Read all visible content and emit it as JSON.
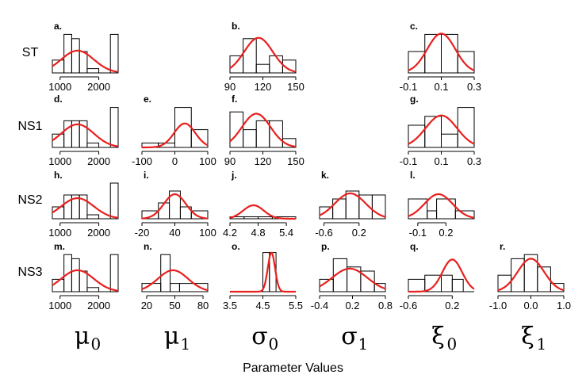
{
  "xlabel": "Parameter Values",
  "row_labels": [
    "ST",
    "NS1",
    "NS2",
    "NS3"
  ],
  "column_labels": [
    {
      "symbol": "μ",
      "sub": "0"
    },
    {
      "symbol": "μ",
      "sub": "1"
    },
    {
      "symbol": "σ",
      "sub": "0"
    },
    {
      "symbol": "σ",
      "sub": "1"
    },
    {
      "symbol": "ξ",
      "sub": "0"
    },
    {
      "symbol": "ξ",
      "sub": "1"
    }
  ],
  "colors": {
    "curve": "#e8201e",
    "bars": "#000000"
  },
  "chart_data": [
    {
      "label": "a.",
      "row": 0,
      "col": 0,
      "type": "bar",
      "xlim": [
        800,
        2500
      ],
      "bins": [
        [
          800,
          1100
        ],
        [
          1100,
          1300
        ],
        [
          1300,
          1500
        ],
        [
          1500,
          1700
        ],
        [
          1700,
          2000
        ],
        [
          2000,
          2300
        ],
        [
          2300,
          2500
        ]
      ],
      "counts": [
        3,
        9,
        8,
        5,
        1,
        0,
        9
      ],
      "normal": {
        "mean": 1450,
        "sd": 420,
        "peak": 5.2
      },
      "ticks": [
        1000,
        2000
      ],
      "tick_labels": [
        "1000",
        "2000"
      ]
    },
    {
      "label": "b.",
      "row": 0,
      "col": 2,
      "type": "bar",
      "xlim": [
        90,
        150
      ],
      "bins": [
        [
          90,
          102
        ],
        [
          102,
          114
        ],
        [
          114,
          126
        ],
        [
          126,
          138
        ],
        [
          138,
          150
        ]
      ],
      "counts": [
        4,
        8,
        2,
        4,
        3
      ],
      "normal": {
        "mean": 116,
        "sd": 13,
        "peak": 8.2
      },
      "ticks": [
        90,
        120,
        150
      ],
      "tick_labels": [
        "90",
        "120",
        "150"
      ]
    },
    {
      "label": "c.",
      "row": 0,
      "col": 4,
      "type": "bar",
      "xlim": [
        -0.1,
        0.3
      ],
      "bins": [
        [
          -0.1,
          0.0
        ],
        [
          0.0,
          0.1
        ],
        [
          0.1,
          0.2
        ],
        [
          0.2,
          0.3
        ]
      ],
      "counts": [
        5,
        9,
        9,
        5
      ],
      "normal": {
        "mean": 0.1,
        "sd": 0.085,
        "peak": 9.2
      },
      "ticks": [
        -0.1,
        0.1,
        0.3
      ],
      "tick_labels": [
        "-0.1",
        "0.1",
        "0.3"
      ]
    },
    {
      "label": "d.",
      "row": 1,
      "col": 0,
      "type": "bar",
      "xlim": [
        800,
        2500
      ],
      "bins": [
        [
          800,
          1100
        ],
        [
          1100,
          1300
        ],
        [
          1300,
          1500
        ],
        [
          1500,
          1700
        ],
        [
          1700,
          2000
        ],
        [
          2000,
          2300
        ],
        [
          2300,
          2500
        ]
      ],
      "counts": [
        3,
        6,
        6,
        6,
        1,
        0,
        9
      ],
      "normal": {
        "mean": 1450,
        "sd": 420,
        "peak": 5.2
      },
      "ticks": [
        1000,
        2000
      ],
      "tick_labels": [
        "1000",
        "2000"
      ]
    },
    {
      "label": "e.",
      "row": 1,
      "col": 1,
      "type": "bar",
      "xlim": [
        -100,
        100
      ],
      "bins": [
        [
          -100,
          -50
        ],
        [
          -50,
          0
        ],
        [
          0,
          50
        ],
        [
          50,
          100
        ]
      ],
      "counts": [
        1,
        1,
        9,
        4
      ],
      "normal": {
        "mean": 30,
        "sd": 32,
        "peak": 5.4
      },
      "ticks": [
        -100,
        0,
        100
      ],
      "tick_labels": [
        "-100",
        "0",
        "100"
      ]
    },
    {
      "label": "f.",
      "row": 1,
      "col": 2,
      "type": "bar",
      "xlim": [
        90,
        150
      ],
      "bins": [
        [
          90,
          102
        ],
        [
          102,
          114
        ],
        [
          114,
          126
        ],
        [
          126,
          138
        ],
        [
          138,
          150
        ]
      ],
      "counts": [
        8,
        4,
        6,
        6,
        2
      ],
      "normal": {
        "mean": 114,
        "sd": 13,
        "peak": 7.6
      },
      "ticks": [
        90,
        120,
        150
      ],
      "tick_labels": [
        "90",
        "120",
        "150"
      ]
    },
    {
      "label": "g.",
      "row": 1,
      "col": 4,
      "type": "bar",
      "xlim": [
        -0.1,
        0.3
      ],
      "bins": [
        [
          -0.1,
          0.0
        ],
        [
          0.0,
          0.1
        ],
        [
          0.1,
          0.2
        ],
        [
          0.2,
          0.3
        ]
      ],
      "counts": [
        5,
        7,
        3,
        9
      ],
      "normal": {
        "mean": 0.1,
        "sd": 0.095,
        "peak": 7.2
      },
      "ticks": [
        -0.1,
        0.1,
        0.3
      ],
      "tick_labels": [
        "-0.1",
        "0.1",
        "0.3"
      ]
    },
    {
      "label": "h.",
      "row": 2,
      "col": 0,
      "type": "bar",
      "xlim": [
        800,
        2500
      ],
      "bins": [
        [
          800,
          1100
        ],
        [
          1100,
          1300
        ],
        [
          1300,
          1500
        ],
        [
          1500,
          1700
        ],
        [
          1700,
          2000
        ],
        [
          2000,
          2300
        ],
        [
          2300,
          2500
        ]
      ],
      "counts": [
        3,
        6,
        6,
        6,
        1,
        0,
        9
      ],
      "normal": {
        "mean": 1450,
        "sd": 420,
        "peak": 5.2
      },
      "ticks": [
        1000,
        2000
      ],
      "tick_labels": [
        "1000",
        "2000"
      ]
    },
    {
      "label": "i.",
      "row": 2,
      "col": 1,
      "type": "bar",
      "xlim": [
        -20,
        100
      ],
      "bins": [
        [
          -20,
          10
        ],
        [
          10,
          30
        ],
        [
          30,
          50
        ],
        [
          50,
          70
        ],
        [
          70,
          100
        ]
      ],
      "counts": [
        2,
        4,
        7,
        3,
        2
      ],
      "normal": {
        "mean": 40,
        "sd": 20,
        "peak": 6.2
      },
      "ticks": [
        -20,
        40,
        100
      ],
      "tick_labels": [
        "-20",
        "40",
        "100"
      ]
    },
    {
      "label": "j.",
      "row": 2,
      "col": 2,
      "type": "bar",
      "xlim": [
        4.2,
        5.6
      ],
      "bins": [
        [
          4.2,
          4.5
        ],
        [
          4.5,
          4.8
        ],
        [
          4.8,
          5.1
        ],
        [
          5.1,
          5.6
        ]
      ],
      "counts": [
        0.5,
        0.5,
        0.5,
        0.5
      ],
      "normal": {
        "mean": 4.7,
        "sd": 0.22,
        "peak": 3.4
      },
      "ticks": [
        4.2,
        4.8,
        5.4
      ],
      "tick_labels": [
        "4.2",
        "4.8",
        "5.4"
      ]
    },
    {
      "label": "k.",
      "row": 2,
      "col": 3,
      "type": "bar",
      "xlim": [
        -0.7,
        0.8
      ],
      "bins": [
        [
          -0.7,
          -0.4
        ],
        [
          -0.4,
          -0.1
        ],
        [
          -0.1,
          0.2
        ],
        [
          0.2,
          0.5
        ],
        [
          0.5,
          0.8
        ]
      ],
      "counts": [
        3,
        5,
        7,
        6,
        6
      ],
      "normal": {
        "mean": 0.0,
        "sd": 0.35,
        "peak": 6.4
      },
      "ticks": [
        -0.6,
        0.2
      ],
      "tick_labels": [
        "-0.6",
        "0.2"
      ]
    },
    {
      "label": "l.",
      "row": 2,
      "col": 4,
      "type": "bar",
      "xlim": [
        -0.2,
        0.5
      ],
      "bins": [
        [
          -0.2,
          0.0
        ],
        [
          0.0,
          0.1
        ],
        [
          0.1,
          0.3
        ],
        [
          0.3,
          0.5
        ]
      ],
      "counts": [
        5,
        2,
        5,
        2
      ],
      "normal": {
        "mean": 0.12,
        "sd": 0.15,
        "peak": 6.2
      },
      "ticks": [
        -0.1,
        0.2
      ],
      "tick_labels": [
        "-0.1",
        "0.2"
      ]
    },
    {
      "label": "m.",
      "row": 3,
      "col": 0,
      "type": "bar",
      "xlim": [
        800,
        2500
      ],
      "bins": [
        [
          800,
          1100
        ],
        [
          1100,
          1300
        ],
        [
          1300,
          1500
        ],
        [
          1500,
          1700
        ],
        [
          1700,
          2000
        ],
        [
          2000,
          2300
        ],
        [
          2300,
          2500
        ]
      ],
      "counts": [
        3,
        9,
        8,
        5,
        1,
        0,
        9
      ],
      "normal": {
        "mean": 1450,
        "sd": 420,
        "peak": 5.2
      },
      "ticks": [
        1000,
        2000
      ],
      "tick_labels": [
        "1000",
        "2000"
      ]
    },
    {
      "label": "n.",
      "row": 3,
      "col": 1,
      "type": "bar",
      "xlim": [
        15,
        85
      ],
      "bins": [
        [
          15,
          35
        ],
        [
          35,
          45
        ],
        [
          45,
          55
        ],
        [
          55,
          85
        ]
      ],
      "counts": [
        2,
        9,
        2,
        2
      ],
      "normal": {
        "mean": 48,
        "sd": 16,
        "peak": 5.2
      },
      "ticks": [
        20,
        50,
        80
      ],
      "tick_labels": [
        "20",
        "50",
        "80"
      ]
    },
    {
      "label": "o.",
      "row": 3,
      "col": 2,
      "type": "bar",
      "xlim": [
        3.5,
        5.5
      ],
      "bins": [
        [
          4.5,
          4.7
        ],
        [
          4.7,
          4.9
        ]
      ],
      "counts": [
        9.5,
        9.5
      ],
      "normal": {
        "mean": 4.76,
        "sd": 0.11,
        "peak": 9.5
      },
      "ticks": [
        3.5,
        4.5,
        5.5
      ],
      "tick_labels": [
        "3.5",
        "4.5",
        "5.5"
      ]
    },
    {
      "label": "p.",
      "row": 3,
      "col": 3,
      "type": "bar",
      "xlim": [
        -0.4,
        0.8
      ],
      "bins": [
        [
          -0.4,
          -0.15
        ],
        [
          -0.15,
          0.1
        ],
        [
          0.1,
          0.35
        ],
        [
          0.35,
          0.6
        ],
        [
          0.6,
          0.8
        ]
      ],
      "counts": [
        3,
        8,
        6,
        5,
        2
      ],
      "normal": {
        "mean": 0.15,
        "sd": 0.32,
        "peak": 5.6
      },
      "ticks": [
        -0.4,
        0.2,
        0.8
      ],
      "tick_labels": [
        "-0.4",
        "0.2",
        "0.8"
      ]
    },
    {
      "label": "q.",
      "row": 3,
      "col": 4,
      "type": "bar",
      "xlim": [
        -0.6,
        0.6
      ],
      "bins": [
        [
          -0.6,
          -0.3
        ],
        [
          -0.3,
          0.0
        ],
        [
          0.0,
          0.2
        ],
        [
          0.2,
          0.4
        ]
      ],
      "counts": [
        3,
        4,
        4,
        3
      ],
      "normal": {
        "mean": 0.2,
        "sd": 0.18,
        "peak": 7.8
      },
      "ticks": [
        -0.6,
        0.2
      ],
      "tick_labels": [
        "-0.6",
        "0.2"
      ]
    },
    {
      "label": "r.",
      "row": 3,
      "col": 5,
      "type": "bar",
      "xlim": [
        -1.0,
        1.0
      ],
      "bins": [
        [
          -1.0,
          -0.6
        ],
        [
          -0.6,
          -0.2
        ],
        [
          -0.2,
          0.2
        ],
        [
          0.2,
          0.6
        ],
        [
          0.6,
          1.0
        ]
      ],
      "counts": [
        4,
        8,
        9,
        6,
        2
      ],
      "normal": {
        "mean": 0.0,
        "sd": 0.4,
        "peak": 8.0
      },
      "ticks": [
        -1.0,
        0.0,
        1.0
      ],
      "tick_labels": [
        "-1.0",
        "0.0",
        "1.0"
      ]
    }
  ]
}
